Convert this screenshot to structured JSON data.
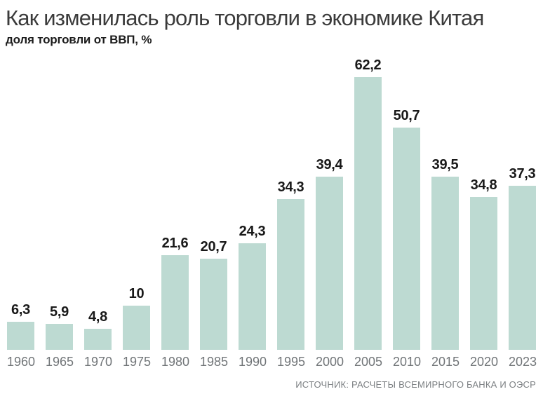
{
  "header": {
    "title": "Как изменилась роль торговли в экономике Китая",
    "subtitle": "доля торговли от ВВП, %"
  },
  "footer": {
    "source": "ИСТОЧНИК: РАСЧЕТЫ ВСЕМИРНОГО БАНКА И ОЭСР"
  },
  "colors": {
    "bar": "#bddad2",
    "value_label": "#191919",
    "year_label": "#717578",
    "title": "#3b3b3b",
    "source": "#7b7f82"
  },
  "chart_data": {
    "type": "bar",
    "title": "Как изменилась роль торговли в экономике Китая",
    "subtitle": "доля торговли от ВВП, %",
    "categories": [
      "1960",
      "1965",
      "1970",
      "1975",
      "1980",
      "1985",
      "1990",
      "1995",
      "2000",
      "2005",
      "2010",
      "2015",
      "2020",
      "2023"
    ],
    "values": [
      6.3,
      5.9,
      4.8,
      10,
      21.6,
      20.7,
      24.3,
      34.3,
      39.4,
      62.2,
      50.7,
      39.5,
      34.8,
      37.3
    ],
    "value_labels": [
      "6,3",
      "5,9",
      "4,8",
      "10",
      "21,6",
      "20,7",
      "24,3",
      "34,3",
      "39,4",
      "62,2",
      "50,7",
      "39,5",
      "34,8",
      "37,3"
    ],
    "xlabel": "",
    "ylabel": "доля торговли от ВВП, %",
    "ylim": [
      0,
      65
    ],
    "grid": false,
    "legend": "none",
    "bar_color": "#bddad2",
    "source": "ИСТОЧНИК: РАСЧЕТЫ ВСЕМИРНОГО БАНКА И ОЭСР"
  }
}
